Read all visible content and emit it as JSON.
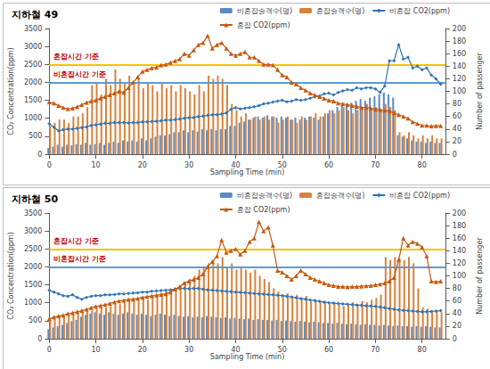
{
  "chart_data": [
    {
      "type": "bar",
      "title": "지하철 49",
      "x_label": "Sampling Time (min)",
      "y_label": "CO₂ Concentration(ppm)",
      "y2_label": "Number of passenger",
      "xlim": [
        0,
        85
      ],
      "xticks": [
        0,
        10,
        20,
        30,
        40,
        50,
        60,
        70,
        80
      ],
      "ylim": [
        0,
        3500
      ],
      "yticks": [
        0,
        500,
        1000,
        1500,
        2000,
        2500,
        3000,
        3500
      ],
      "y2lim": [
        0,
        200
      ],
      "y2ticks": [
        0,
        20,
        40,
        60,
        80,
        100,
        120,
        140,
        160,
        180,
        200
      ],
      "grid": false,
      "legend": "upper right",
      "annotations": [
        {
          "text": "혼잡시간 기준",
          "y": 2500,
          "color": "#ffc000"
        },
        {
          "text": "비혼잡시간 기준",
          "y": 2000,
          "color": "#5b9bd5"
        }
      ],
      "x": [
        0,
        1,
        2,
        3,
        4,
        5,
        6,
        7,
        8,
        9,
        10,
        11,
        12,
        13,
        14,
        15,
        16,
        17,
        18,
        19,
        20,
        21,
        22,
        23,
        24,
        25,
        26,
        27,
        28,
        29,
        30,
        31,
        32,
        33,
        34,
        35,
        36,
        37,
        38,
        39,
        40,
        41,
        42,
        43,
        44,
        45,
        46,
        47,
        48,
        49,
        50,
        51,
        52,
        53,
        54,
        55,
        56,
        57,
        58,
        59,
        60,
        61,
        62,
        63,
        64,
        65,
        66,
        67,
        68,
        69,
        70,
        71,
        72,
        73,
        74,
        75,
        76,
        77,
        78,
        79,
        80,
        81,
        82,
        83,
        84
      ],
      "series": [
        {
          "name": "비혼잡승객수(명)",
          "type": "bar",
          "axis": "y2",
          "color": "#5b8bc0",
          "values": [
            10,
            12,
            15,
            12,
            15,
            14,
            16,
            15,
            18,
            15,
            16,
            18,
            15,
            18,
            20,
            18,
            22,
            20,
            22,
            20,
            25,
            22,
            25,
            28,
            30,
            30,
            32,
            35,
            35,
            38,
            35,
            38,
            36,
            40,
            38,
            40,
            38,
            40,
            40,
            45,
            45,
            50,
            52,
            55,
            58,
            60,
            58,
            62,
            60,
            58,
            60,
            58,
            55,
            58,
            55,
            58,
            60,
            58,
            55,
            60,
            65,
            70,
            75,
            78,
            80,
            82,
            85,
            88,
            85,
            90,
            92,
            95,
            98,
            95,
            90,
            30,
            28,
            25,
            22,
            20,
            20,
            18,
            20,
            18,
            18
          ]
        },
        {
          "name": "혼잡승객수(명)",
          "type": "bar",
          "axis": "y2",
          "color": "#d9823b",
          "values": [
            45,
            50,
            55,
            55,
            50,
            60,
            60,
            65,
            75,
            110,
            115,
            95,
            120,
            110,
            135,
            120,
            115,
            125,
            110,
            120,
            105,
            115,
            110,
            100,
            115,
            105,
            110,
            100,
            110,
            105,
            100,
            95,
            110,
            100,
            125,
            120,
            125,
            120,
            110,
            80,
            70,
            60,
            65,
            55,
            60,
            55,
            60,
            55,
            60,
            50,
            55,
            60,
            55,
            50,
            60,
            55,
            60,
            65,
            60,
            65,
            70,
            65,
            70,
            75,
            70,
            65,
            70,
            75,
            80,
            70,
            75,
            70,
            80,
            75,
            70,
            35,
            30,
            35,
            30,
            25,
            30,
            25,
            30,
            25,
            25
          ]
        },
        {
          "name": "비혼잡 CO2(ppm)",
          "type": "line",
          "color": "#2e75b6",
          "marker": "diamond",
          "line_style": "solid",
          "values": [
            850,
            750,
            650,
            680,
            700,
            700,
            720,
            740,
            760,
            800,
            820,
            840,
            860,
            860,
            880,
            880,
            880,
            870,
            880,
            880,
            900,
            900,
            910,
            920,
            930,
            950,
            950,
            960,
            980,
            1000,
            1020,
            1020,
            1050,
            1060,
            1080,
            1100,
            1100,
            1120,
            1150,
            1250,
            1300,
            1260,
            1280,
            1300,
            1320,
            1350,
            1400,
            1420,
            1450,
            1480,
            1500,
            1460,
            1480,
            1520,
            1500,
            1520,
            1560,
            1600,
            1620,
            1680,
            1700,
            1650,
            1720,
            1760,
            1800,
            1780,
            1850,
            1820,
            1850,
            1850,
            1820,
            1720,
            1900,
            2600,
            2600,
            3050,
            2650,
            2700,
            2400,
            2450,
            2350,
            2400,
            2200,
            2100,
            1950
          ]
        },
        {
          "name": "혼잡 CO2(ppm)",
          "type": "line",
          "color": "#c55a11",
          "marker": "triangle",
          "line_style": "solid",
          "values": [
            1450,
            1420,
            1350,
            1300,
            1260,
            1280,
            1320,
            1380,
            1440,
            1480,
            1500,
            1560,
            1600,
            1650,
            1700,
            1750,
            1720,
            1850,
            2000,
            2150,
            2300,
            2350,
            2400,
            2420,
            2480,
            2500,
            2550,
            2600,
            2650,
            2800,
            2750,
            2900,
            3050,
            3100,
            3300,
            2950,
            3050,
            3100,
            2950,
            2800,
            2750,
            2800,
            2850,
            2700,
            2700,
            2600,
            2500,
            2500,
            2480,
            2350,
            2200,
            2150,
            2000,
            1950,
            1850,
            1780,
            1700,
            1650,
            1600,
            1550,
            1500,
            1480,
            1420,
            1400,
            1380,
            1350,
            1330,
            1300,
            1300,
            1280,
            1250,
            1240,
            1220,
            1200,
            1150,
            1100,
            1050,
            1000,
            900,
            850,
            800,
            800,
            780,
            790,
            790
          ]
        }
      ]
    },
    {
      "type": "bar",
      "title": "지하철 50",
      "x_label": "Sampling Time (min)",
      "y_label": "CO₂ Concentration(ppm)",
      "y2_label": "Number of passenger",
      "xlim": [
        0,
        85
      ],
      "xticks": [
        0,
        10,
        20,
        30,
        40,
        50,
        60,
        70,
        80
      ],
      "ylim": [
        0,
        3500
      ],
      "yticks": [
        0,
        500,
        1000,
        1500,
        2000,
        2500,
        3000,
        3500
      ],
      "y2lim": [
        0,
        200
      ],
      "y2ticks": [
        0,
        20,
        40,
        60,
        80,
        100,
        120,
        140,
        160,
        180,
        200
      ],
      "grid": false,
      "legend": "upper right",
      "annotations": [
        {
          "text": "혼잡시간 기준",
          "y": 2500,
          "color": "#ffc000"
        },
        {
          "text": "비혼잡시간 기준",
          "y": 2000,
          "color": "#5b9bd5"
        }
      ],
      "x": [
        0,
        1,
        2,
        3,
        4,
        5,
        6,
        7,
        8,
        9,
        10,
        11,
        12,
        13,
        14,
        15,
        16,
        17,
        18,
        19,
        20,
        21,
        22,
        23,
        24,
        25,
        26,
        27,
        28,
        29,
        30,
        31,
        32,
        33,
        34,
        35,
        36,
        37,
        38,
        39,
        40,
        41,
        42,
        43,
        44,
        45,
        46,
        47,
        48,
        49,
        50,
        51,
        52,
        53,
        54,
        55,
        56,
        57,
        58,
        59,
        60,
        61,
        62,
        63,
        64,
        65,
        66,
        67,
        68,
        69,
        70,
        71,
        72,
        73,
        74,
        75,
        76,
        77,
        78,
        79,
        80,
        81,
        82,
        83,
        84
      ],
      "series": [
        {
          "name": "비혼잡승객수(명)",
          "type": "bar",
          "axis": "y2",
          "color": "#5b8bc0",
          "values": [
            15,
            18,
            20,
            22,
            25,
            28,
            30,
            35,
            38,
            40,
            42,
            40,
            38,
            42,
            40,
            38,
            40,
            42,
            40,
            38,
            40,
            38,
            36,
            38,
            40,
            38,
            36,
            38,
            36,
            35,
            36,
            34,
            35,
            34,
            36,
            35,
            34,
            33,
            34,
            32,
            33,
            32,
            31,
            32,
            30,
            31,
            30,
            30,
            29,
            30,
            28,
            29,
            28,
            27,
            28,
            27,
            26,
            27,
            26,
            25,
            25,
            24,
            25,
            24,
            23,
            24,
            23,
            22,
            23,
            22,
            22,
            21,
            22,
            21,
            20,
            21,
            20,
            20,
            19,
            20,
            19,
            20,
            19,
            18,
            18
          ]
        },
        {
          "name": "혼잡승객수(명)",
          "type": "bar",
          "axis": "y2",
          "color": "#d9823b",
          "values": [
            30,
            32,
            35,
            35,
            38,
            40,
            40,
            42,
            45,
            45,
            48,
            50,
            50,
            52,
            55,
            55,
            58,
            60,
            62,
            60,
            65,
            62,
            68,
            70,
            72,
            75,
            78,
            80,
            85,
            90,
            95,
            100,
            110,
            115,
            120,
            125,
            120,
            130,
            115,
            120,
            110,
            115,
            110,
            105,
            110,
            100,
            95,
            90,
            80,
            75,
            70,
            72,
            68,
            70,
            65,
            68,
            60,
            62,
            58,
            60,
            55,
            58,
            55,
            52,
            55,
            58,
            55,
            60,
            58,
            62,
            65,
            70,
            130,
            125,
            130,
            128,
            125,
            130,
            120,
            80,
            50,
            48,
            45,
            45,
            42
          ]
        },
        {
          "name": "비혼잡 CO2(ppm)",
          "type": "line",
          "color": "#2e75b6",
          "marker": "diamond",
          "line_style": "solid",
          "values": [
            1350,
            1300,
            1250,
            1200,
            1180,
            1220,
            1150,
            1100,
            1150,
            1180,
            1200,
            1200,
            1220,
            1220,
            1230,
            1250,
            1250,
            1260,
            1270,
            1280,
            1300,
            1300,
            1320,
            1330,
            1340,
            1350,
            1360,
            1380,
            1400,
            1400,
            1390,
            1400,
            1400,
            1380,
            1360,
            1350,
            1340,
            1330,
            1320,
            1310,
            1300,
            1290,
            1280,
            1270,
            1260,
            1250,
            1240,
            1230,
            1220,
            1210,
            1200,
            1180,
            1160,
            1140,
            1120,
            1100,
            1080,
            1060,
            1040,
            1020,
            1000,
            990,
            980,
            970,
            960,
            950,
            940,
            930,
            920,
            910,
            900,
            880,
            860,
            840,
            820,
            800,
            790,
            780,
            770,
            760,
            750,
            750,
            760,
            770,
            780
          ]
        },
        {
          "name": "혼잡 CO2(ppm)",
          "type": "line",
          "color": "#c55a11",
          "marker": "triangle",
          "line_style": "solid",
          "values": [
            550,
            600,
            630,
            650,
            700,
            720,
            750,
            780,
            820,
            860,
            900,
            920,
            950,
            980,
            1020,
            1050,
            1070,
            1090,
            1100,
            1120,
            1150,
            1170,
            1190,
            1210,
            1230,
            1250,
            1300,
            1380,
            1450,
            1550,
            1600,
            1650,
            1700,
            1800,
            2000,
            2150,
            2300,
            2750,
            2400,
            2450,
            2500,
            2350,
            2450,
            2700,
            2800,
            3250,
            3000,
            3100,
            2600,
            1900,
            1850,
            1750,
            1650,
            1750,
            1900,
            1800,
            1700,
            1650,
            1600,
            1550,
            1500,
            1480,
            1450,
            1450,
            1440,
            1450,
            1450,
            1460,
            1470,
            1480,
            1500,
            1520,
            1550,
            1600,
            1700,
            2200,
            2800,
            2600,
            2700,
            2650,
            2550,
            2300,
            1600,
            1580,
            1600
          ]
        }
      ]
    }
  ]
}
